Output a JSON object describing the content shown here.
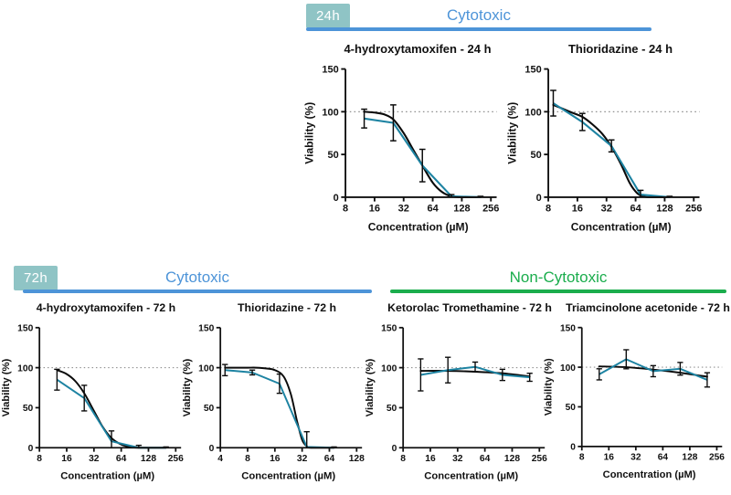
{
  "colors": {
    "badge_teal": "#8fc4c5",
    "badge_text": "#ffffff",
    "cytotoxic_blue": "#4d94d8",
    "noncytotoxic_green": "#1bad4d",
    "curve_teal": "#1d83a2",
    "curve_black": "#0a0a0a",
    "axis": "#111111",
    "reference_gray": "#909090"
  },
  "sections": {
    "top": {
      "badge": "24h",
      "header": {
        "label": "Cytotoxic"
      }
    },
    "bottom": {
      "badge": "72h",
      "headers": [
        {
          "label": "Cytotoxic"
        },
        {
          "label": "Non-Cytotoxic"
        }
      ]
    }
  },
  "chart_data": [
    {
      "type": "line",
      "title": "4-hydroxytamoxifen - 24 h",
      "xlabel": "Concentration (µM)",
      "ylabel": "Viability (%)",
      "xscale": "log2",
      "xticks": [
        8,
        16,
        32,
        64,
        128,
        256
      ],
      "yticks": [
        0,
        50,
        100,
        150
      ],
      "ylim": [
        0,
        150
      ],
      "reference_line_y": 100,
      "series": [
        {
          "name": "fitted curve",
          "color": "black",
          "x": [
            12.5,
            16,
            20,
            25,
            32,
            40,
            50,
            64,
            80,
            100,
            128,
            200
          ],
          "y": [
            100,
            99,
            97,
            91,
            75,
            56,
            37,
            17,
            6,
            1,
            0,
            0
          ]
        },
        {
          "name": "mean viability",
          "color": "teal",
          "x": [
            12.5,
            25,
            50,
            100,
            200
          ],
          "y": [
            92,
            87,
            37,
            1,
            0
          ],
          "err": [
            11,
            21,
            19,
            2,
            1
          ]
        }
      ]
    },
    {
      "type": "line",
      "title": "Thioridazine - 24 h",
      "xlabel": "Concentration (µM)",
      "ylabel": "Viability (%)",
      "xscale": "log2",
      "xticks": [
        8,
        16,
        32,
        64,
        128,
        256
      ],
      "yticks": [
        0,
        50,
        100,
        150
      ],
      "ylim": [
        0,
        150
      ],
      "reference_line_y": 100,
      "series": [
        {
          "name": "fitted curve",
          "color": "black",
          "x": [
            9,
            11,
            14,
            18,
            23,
            29,
            36,
            45,
            56,
            66,
            76,
            90,
            144
          ],
          "y": [
            108,
            104,
            99,
            94,
            85,
            74,
            59,
            39,
            16,
            5,
            1,
            0,
            0
          ]
        },
        {
          "name": "mean viability",
          "color": "teal",
          "x": [
            9,
            18,
            36,
            72,
            144
          ],
          "y": [
            110,
            88,
            60,
            3,
            0
          ],
          "err": [
            15,
            10,
            7,
            5,
            1
          ]
        }
      ]
    },
    {
      "type": "line",
      "title": "4-hydroxytamoxifen - 72 h",
      "xlabel": "Concentration (µM)",
      "ylabel": "Viability (%)",
      "xscale": "log2",
      "xticks": [
        8,
        16,
        32,
        64,
        128,
        256
      ],
      "yticks": [
        0,
        50,
        100,
        150
      ],
      "ylim": [
        0,
        150
      ],
      "reference_line_y": 100,
      "series": [
        {
          "name": "fitted curve",
          "color": "black",
          "x": [
            12.5,
            16,
            20,
            25,
            32,
            40,
            50,
            64,
            80,
            100,
            200
          ],
          "y": [
            97,
            92,
            83,
            68,
            46,
            26,
            12,
            4,
            1,
            0,
            0
          ]
        },
        {
          "name": "mean viability",
          "color": "teal",
          "x": [
            12.5,
            25,
            50,
            100,
            200
          ],
          "y": [
            85,
            62,
            8,
            0,
            0
          ],
          "err": [
            13,
            16,
            13,
            3,
            1
          ]
        }
      ]
    },
    {
      "type": "line",
      "title": "Thioridazine - 72 h",
      "xlabel": "Concentration (µM)",
      "ylabel": "Viability (%)",
      "xscale": "log2",
      "xticks": [
        4,
        8,
        16,
        32,
        64,
        128
      ],
      "yticks": [
        0,
        50,
        100,
        150
      ],
      "ylim": [
        0,
        150
      ],
      "reference_line_y": 100,
      "series": [
        {
          "name": "fitted curve",
          "color": "black",
          "x": [
            4.5,
            6,
            8,
            10,
            13,
            16,
            20,
            24,
            28,
            32,
            36,
            40,
            72
          ],
          "y": [
            100,
            100,
            100,
            100,
            99,
            97,
            89,
            67,
            34,
            10,
            2,
            0,
            0
          ]
        },
        {
          "name": "mean viability",
          "color": "teal",
          "x": [
            4.5,
            9,
            18,
            36,
            72
          ],
          "y": [
            97,
            94,
            80,
            1,
            0
          ],
          "err": [
            7,
            3,
            12,
            19,
            1
          ]
        }
      ]
    },
    {
      "type": "line",
      "title": "Ketorolac Tromethamine - 72 h",
      "xlabel": "Concentration (µM)",
      "ylabel": "Viability (%)",
      "xscale": "log2",
      "xticks": [
        8,
        16,
        32,
        64,
        128,
        256
      ],
      "yticks": [
        0,
        50,
        100,
        150
      ],
      "ylim": [
        0,
        150
      ],
      "reference_line_y": 100,
      "series": [
        {
          "name": "fitted curve",
          "color": "black",
          "x": [
            12.5,
            25,
            50,
            100,
            200
          ],
          "y": [
            96,
            96,
            95,
            93,
            89
          ]
        },
        {
          "name": "mean viability",
          "color": "teal",
          "x": [
            12.5,
            25,
            50,
            100,
            200
          ],
          "y": [
            91,
            97,
            101,
            91,
            88
          ],
          "err": [
            20,
            16,
            6,
            7,
            5
          ]
        }
      ]
    },
    {
      "type": "line",
      "title": "Triamcinolone acetonide - 72 h",
      "xlabel": "Concentration (µM)",
      "ylabel": "Viability (%)",
      "xscale": "log2",
      "xticks": [
        8,
        16,
        32,
        64,
        128,
        256
      ],
      "yticks": [
        0,
        50,
        100,
        150
      ],
      "ylim": [
        0,
        150
      ],
      "reference_line_y": 100,
      "series": [
        {
          "name": "fitted curve",
          "color": "black",
          "x": [
            12.5,
            25,
            50,
            100,
            200
          ],
          "y": [
            101,
            100,
            97,
            93,
            88
          ]
        },
        {
          "name": "mean viability",
          "color": "teal",
          "x": [
            12.5,
            25,
            50,
            100,
            200
          ],
          "y": [
            91,
            110,
            95,
            98,
            84
          ],
          "err": [
            7,
            12,
            7,
            8,
            9
          ]
        }
      ]
    }
  ]
}
